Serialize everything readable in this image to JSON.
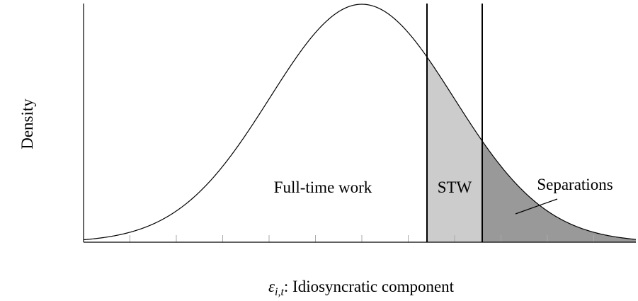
{
  "diagram": {
    "ylabel": "Density",
    "xlabel": {
      "symbol": "ε",
      "subscript": "i,t",
      "text": ": Idiosyncratic component"
    },
    "regions": [
      "Full-time work",
      "STW",
      "Separations"
    ]
  }
}
